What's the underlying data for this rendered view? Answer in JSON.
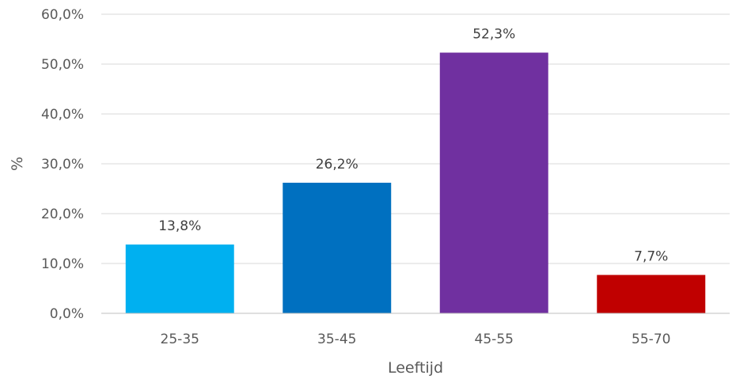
{
  "chart_data": {
    "type": "bar",
    "categories": [
      "25-35",
      "35-45",
      "45-55",
      "55-70"
    ],
    "values": [
      13.8,
      26.2,
      52.3,
      7.7
    ],
    "data_labels": [
      "13,8%",
      "26,2%",
      "52,3%",
      "7,7%"
    ],
    "colors": [
      "#00b0f0",
      "#0070c0",
      "#7030a0",
      "#c00000"
    ],
    "title": "",
    "xlabel": "Leeftijd",
    "ylabel": "%",
    "ylim": [
      0,
      60
    ],
    "yticks": [
      0,
      10,
      20,
      30,
      40,
      50,
      60
    ],
    "ytick_labels": [
      "0,0%",
      "10,0%",
      "20,0%",
      "30,0%",
      "40,0%",
      "50,0%",
      "60,0%"
    ],
    "grid": true,
    "legend": "none"
  }
}
